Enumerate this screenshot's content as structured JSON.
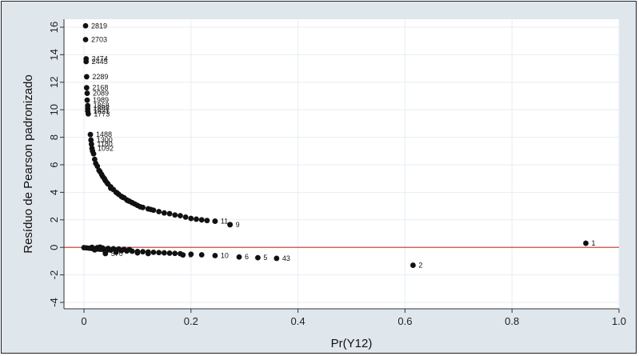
{
  "chart_data": {
    "type": "scatter",
    "title": "",
    "xlabel": "Pr(Y12)",
    "ylabel": "Resíduo de Pearson padronizado",
    "xlim": [
      0,
      1.0
    ],
    "ylim": [
      -4,
      16
    ],
    "xticks": [
      "0",
      "0.2",
      "0.4",
      "0.6",
      "0.8",
      "1.0"
    ],
    "yticks": [
      "-4",
      "-2",
      "0",
      "2",
      "4",
      "6",
      "8",
      "10",
      "12",
      "14",
      "16"
    ],
    "grid": true,
    "reference_line_y": 0,
    "colors": {
      "points": "#111111",
      "reference_line": "#c0392b",
      "plot_bg": "#ffffff",
      "outer_bg": "#dfe6ec",
      "grid": "#e6eef4"
    },
    "labeled_points": [
      {
        "label": "2819",
        "x": 0.003,
        "y": 16.1
      },
      {
        "label": "2703",
        "x": 0.003,
        "y": 15.1
      },
      {
        "label": "2474",
        "x": 0.004,
        "y": 13.7
      },
      {
        "label": "2445",
        "x": 0.004,
        "y": 13.5
      },
      {
        "label": "2289",
        "x": 0.005,
        "y": 12.4
      },
      {
        "label": "2168",
        "x": 0.005,
        "y": 11.6
      },
      {
        "label": "2089",
        "x": 0.006,
        "y": 11.2
      },
      {
        "label": "1989",
        "x": 0.006,
        "y": 10.7
      },
      {
        "label": "1868",
        "x": 0.007,
        "y": 10.3
      },
      {
        "label": "1808",
        "x": 0.007,
        "y": 10.1
      },
      {
        "label": "1821",
        "x": 0.007,
        "y": 9.9
      },
      {
        "label": "1773",
        "x": 0.008,
        "y": 9.7
      },
      {
        "label": "1488",
        "x": 0.012,
        "y": 8.2
      },
      {
        "label": "1300",
        "x": 0.013,
        "y": 7.8
      },
      {
        "label": "1180",
        "x": 0.014,
        "y": 7.5
      },
      {
        "label": "1092",
        "x": 0.015,
        "y": 7.2
      },
      {
        "label": "9",
        "x": 0.273,
        "y": 1.65
      },
      {
        "label": "11",
        "x": 0.245,
        "y": 1.9
      },
      {
        "label": "2",
        "x": 0.615,
        "y": -1.3
      },
      {
        "label": "1",
        "x": 0.938,
        "y": 0.3
      },
      {
        "label": "43",
        "x": 0.36,
        "y": -0.8
      },
      {
        "label": "5",
        "x": 0.325,
        "y": -0.75
      },
      {
        "label": "6",
        "x": 0.29,
        "y": -0.7
      },
      {
        "label": "10",
        "x": 0.245,
        "y": -0.6
      },
      {
        "label": "2",
        "x": 0.185,
        "y": -0.55
      },
      {
        "label": "570",
        "x": 0.04,
        "y": -0.45
      }
    ],
    "series": [
      {
        "upper_curve_points": [
          {
            "x": 0.02,
            "y": 6.4
          },
          {
            "x": 0.025,
            "y": 5.9
          },
          {
            "x": 0.03,
            "y": 5.5
          },
          {
            "x": 0.035,
            "y": 5.15
          },
          {
            "x": 0.04,
            "y": 4.85
          },
          {
            "x": 0.045,
            "y": 4.6
          },
          {
            "x": 0.05,
            "y": 4.4
          },
          {
            "x": 0.055,
            "y": 4.2
          },
          {
            "x": 0.06,
            "y": 4.0
          },
          {
            "x": 0.065,
            "y": 3.85
          },
          {
            "x": 0.07,
            "y": 3.7
          },
          {
            "x": 0.075,
            "y": 3.6
          },
          {
            "x": 0.08,
            "y": 3.45
          },
          {
            "x": 0.085,
            "y": 3.35
          },
          {
            "x": 0.09,
            "y": 3.25
          },
          {
            "x": 0.1,
            "y": 3.05
          },
          {
            "x": 0.11,
            "y": 2.9
          },
          {
            "x": 0.12,
            "y": 2.8
          },
          {
            "x": 0.13,
            "y": 2.7
          },
          {
            "x": 0.14,
            "y": 2.6
          },
          {
            "x": 0.15,
            "y": 2.5
          },
          {
            "x": 0.16,
            "y": 2.45
          },
          {
            "x": 0.17,
            "y": 2.35
          },
          {
            "x": 0.18,
            "y": 2.3
          },
          {
            "x": 0.19,
            "y": 2.2
          },
          {
            "x": 0.2,
            "y": 2.1
          },
          {
            "x": 0.21,
            "y": 2.05
          },
          {
            "x": 0.22,
            "y": 2.0
          },
          {
            "x": 0.23,
            "y": 1.95
          },
          {
            "x": 0.245,
            "y": 1.9
          },
          {
            "x": 0.273,
            "y": 1.65
          },
          {
            "x": 0.018,
            "y": 6.8
          },
          {
            "x": 0.016,
            "y": 7.0
          },
          {
            "x": 0.022,
            "y": 6.1
          },
          {
            "x": 0.028,
            "y": 5.6
          },
          {
            "x": 0.033,
            "y": 5.3
          },
          {
            "x": 0.038,
            "y": 5.0
          },
          {
            "x": 0.043,
            "y": 4.7
          },
          {
            "x": 0.05,
            "y": 4.3
          },
          {
            "x": 0.062,
            "y": 3.95
          },
          {
            "x": 0.072,
            "y": 3.65
          },
          {
            "x": 0.082,
            "y": 3.4
          },
          {
            "x": 0.095,
            "y": 3.15
          },
          {
            "x": 0.105,
            "y": 2.95
          },
          {
            "x": 0.125,
            "y": 2.75
          }
        ],
        "zero_band_points": [
          {
            "x": 0.0,
            "y": -0.02
          },
          {
            "x": 0.005,
            "y": -0.04
          },
          {
            "x": 0.01,
            "y": -0.06
          },
          {
            "x": 0.015,
            "y": -0.08
          },
          {
            "x": 0.02,
            "y": -0.1
          },
          {
            "x": 0.025,
            "y": -0.12
          },
          {
            "x": 0.03,
            "y": -0.14
          },
          {
            "x": 0.035,
            "y": -0.15
          },
          {
            "x": 0.04,
            "y": -0.17
          },
          {
            "x": 0.045,
            "y": -0.18
          },
          {
            "x": 0.05,
            "y": -0.2
          },
          {
            "x": 0.06,
            "y": -0.22
          },
          {
            "x": 0.07,
            "y": -0.24
          },
          {
            "x": 0.08,
            "y": -0.26
          },
          {
            "x": 0.09,
            "y": -0.28
          },
          {
            "x": 0.1,
            "y": -0.3
          },
          {
            "x": 0.11,
            "y": -0.32
          },
          {
            "x": 0.12,
            "y": -0.34
          },
          {
            "x": 0.13,
            "y": -0.36
          },
          {
            "x": 0.14,
            "y": -0.38
          },
          {
            "x": 0.15,
            "y": -0.4
          },
          {
            "x": 0.16,
            "y": -0.42
          },
          {
            "x": 0.17,
            "y": -0.44
          },
          {
            "x": 0.18,
            "y": -0.46
          },
          {
            "x": 0.2,
            "y": -0.5
          },
          {
            "x": 0.22,
            "y": -0.54
          },
          {
            "x": 0.025,
            "y": -0.02
          },
          {
            "x": 0.035,
            "y": -0.05
          },
          {
            "x": 0.045,
            "y": -0.08
          },
          {
            "x": 0.055,
            "y": -0.1
          },
          {
            "x": 0.065,
            "y": -0.12
          },
          {
            "x": 0.075,
            "y": -0.14
          },
          {
            "x": 0.085,
            "y": -0.16
          },
          {
            "x": 0.015,
            "y": 0.0
          },
          {
            "x": 0.03,
            "y": 0.02
          },
          {
            "x": 0.02,
            "y": -0.18
          },
          {
            "x": 0.04,
            "y": -0.3
          },
          {
            "x": 0.06,
            "y": -0.35
          },
          {
            "x": 0.1,
            "y": -0.4
          },
          {
            "x": 0.12,
            "y": -0.45
          }
        ]
      }
    ]
  }
}
